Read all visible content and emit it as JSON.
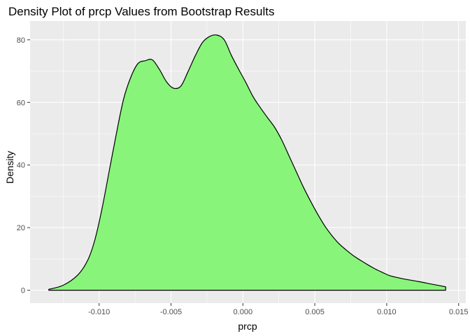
{
  "chart_data": {
    "type": "area",
    "title": "Density Plot of prcp Values from Bootstrap Results",
    "xlabel": "prcp",
    "ylabel": "Density",
    "xlim": [
      -0.0148,
      0.0155
    ],
    "ylim": [
      -4.1,
      86
    ],
    "x_ticks": [
      -0.01,
      -0.005,
      0.0,
      0.005,
      0.01,
      0.015
    ],
    "x_tick_labels": [
      "-0.010",
      "-0.005",
      "0.000",
      "0.005",
      "0.010",
      "0.015"
    ],
    "y_ticks": [
      0,
      20,
      40,
      60,
      80
    ],
    "y_tick_labels": [
      "0",
      "20",
      "40",
      "60",
      "80"
    ],
    "grid": true,
    "legend": "none",
    "fill_color": "#88f57a",
    "line_color": "#000000",
    "panel_background": "#ebebeb",
    "series": [
      {
        "x": [
          -0.0135,
          -0.0125,
          -0.0115,
          -0.0108,
          -0.0103,
          -0.0098,
          -0.0093,
          -0.0088,
          -0.0083,
          -0.0078,
          -0.0073,
          -0.0068,
          -0.0063,
          -0.0058,
          -0.0053,
          -0.0048,
          -0.0043,
          -0.0038,
          -0.0033,
          -0.0028,
          -0.0023,
          -0.0018,
          -0.0013,
          -0.0008,
          -0.0003,
          0.0002,
          0.0007,
          0.0012,
          0.0017,
          0.0022,
          0.0027,
          0.0032,
          0.0037,
          0.0042,
          0.0047,
          0.0052,
          0.0057,
          0.0062,
          0.0067,
          0.0072,
          0.0077,
          0.0082,
          0.0087,
          0.0092,
          0.0097,
          0.0102,
          0.0107,
          0.0112,
          0.0122,
          0.0132,
          0.0141
        ],
        "y": [
          0.3,
          1.6,
          4.8,
          9.5,
          16,
          26,
          38,
          50,
          61,
          68,
          72.4,
          73.3,
          73.6,
          70.5,
          66.5,
          64.5,
          65.3,
          70,
          75,
          79.2,
          81.1,
          81.5,
          80,
          75,
          70.6,
          66.4,
          61.9,
          58.4,
          55.2,
          52.1,
          48,
          43,
          38,
          33,
          28.5,
          24.3,
          20.5,
          17.4,
          14.8,
          12.8,
          11,
          9.5,
          8.1,
          6.8,
          5.7,
          4.7,
          4.1,
          3.6,
          2.8,
          1.9,
          1.1
        ]
      }
    ]
  }
}
